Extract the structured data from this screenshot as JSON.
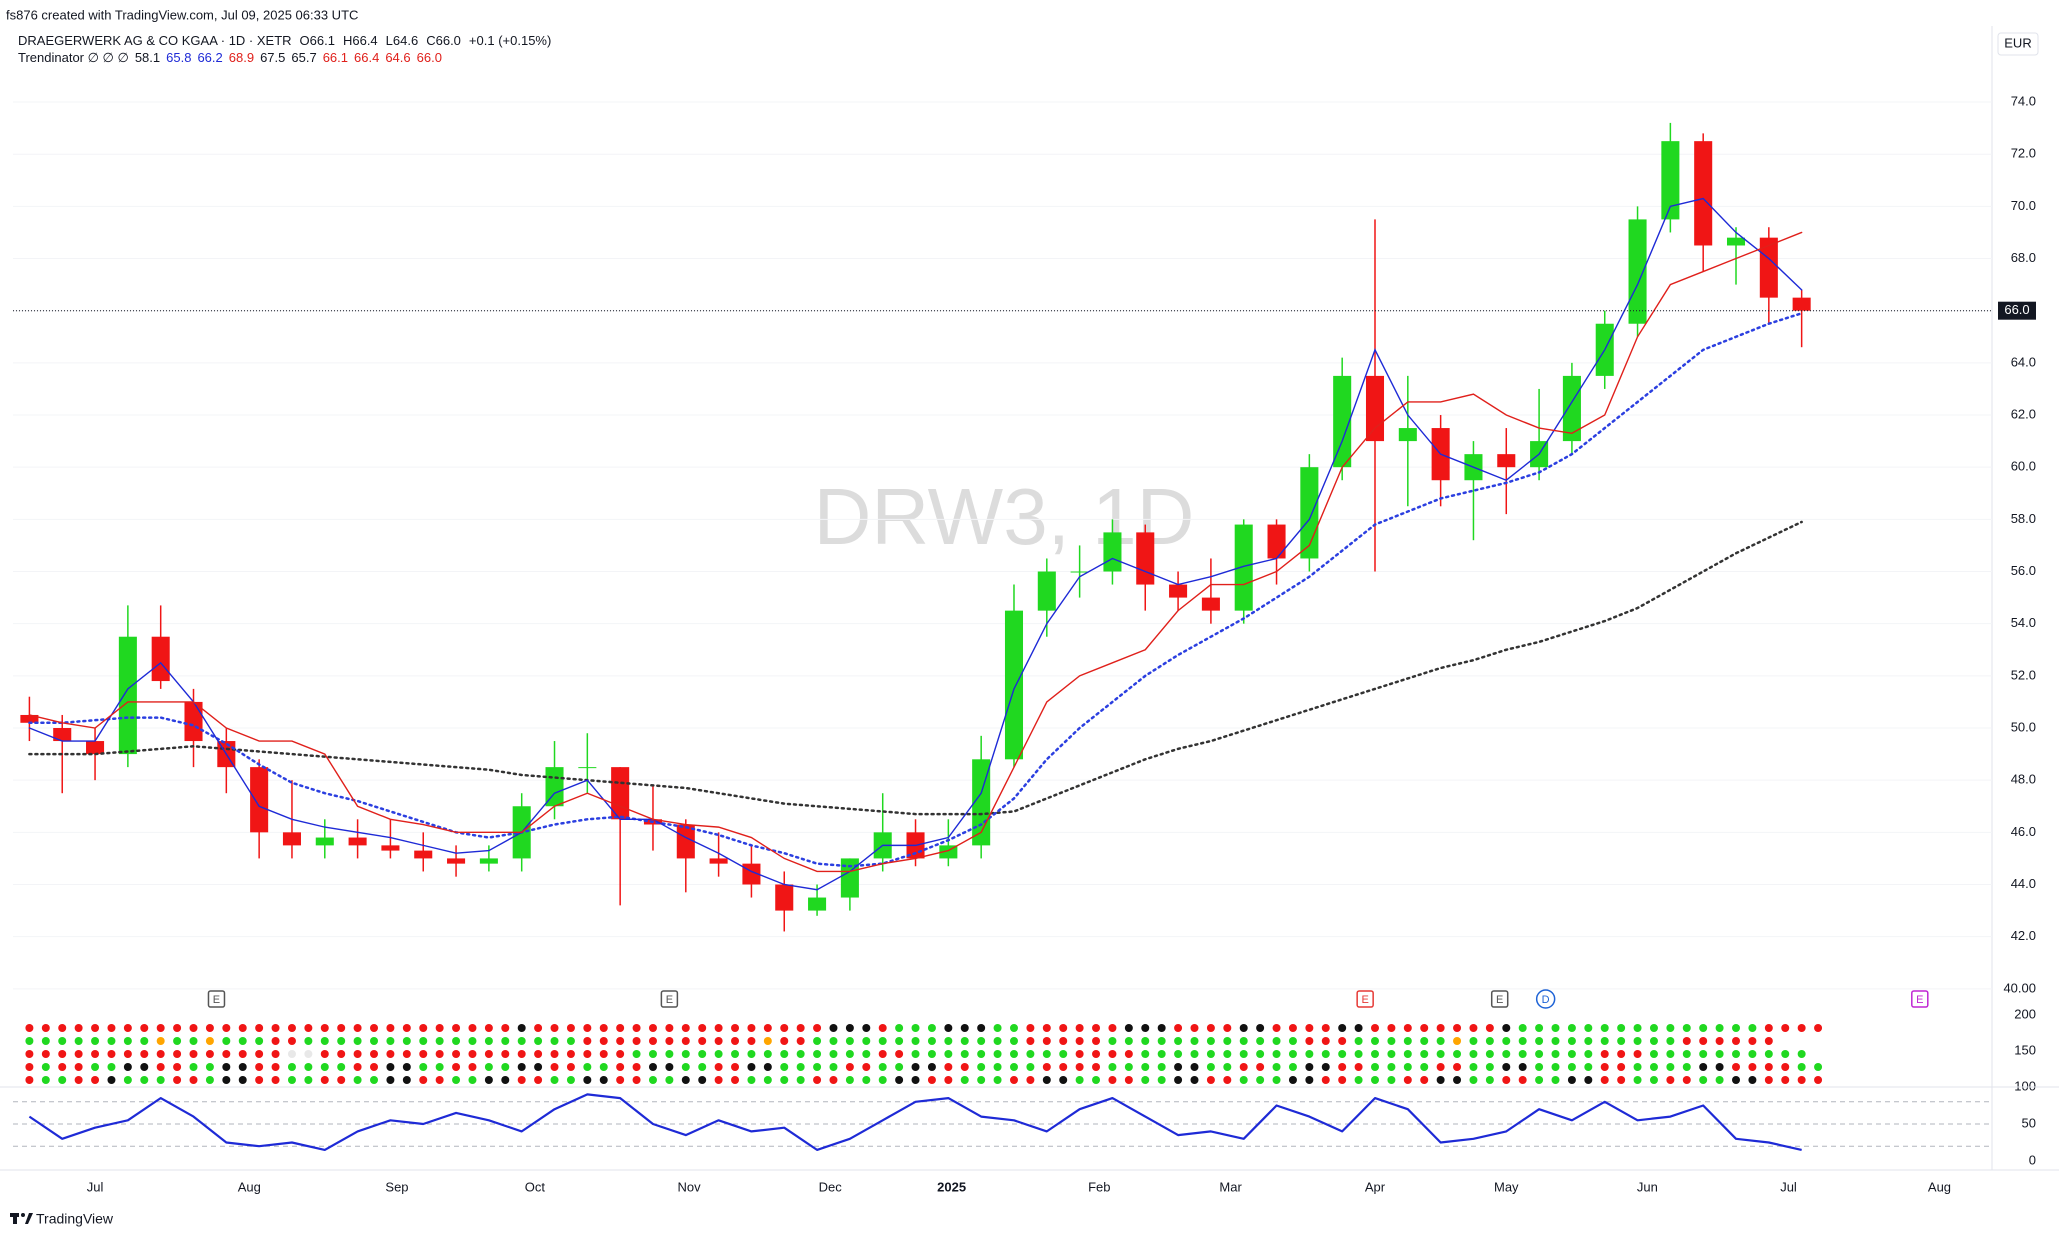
{
  "header": {
    "credit": "fs876 created with TradingView.com, Jul 09, 2025 06:33 UTC",
    "symbol": "DRAEGERWERK AG & CO KGAA · 1D · XETR",
    "ohlc": [
      "O66.1",
      "H66.4",
      "L64.6",
      "C66.0"
    ],
    "change": "+0.1 (+0.15%)",
    "indicator": "Trendinator ∅ ∅ ∅",
    "indicator_values": [
      {
        "text": "58.1",
        "color": "#131722"
      },
      {
        "text": "65.8",
        "color": "#1e2ad6"
      },
      {
        "text": "66.2",
        "color": "#1e2ad6"
      },
      {
        "text": "68.9",
        "color": "#e0201b"
      },
      {
        "text": "67.5",
        "color": "#131722"
      },
      {
        "text": "65.7",
        "color": "#131722"
      },
      {
        "text": "66.1",
        "color": "#e0201b"
      },
      {
        "text": "66.4",
        "color": "#e0201b"
      },
      {
        "text": "64.6",
        "color": "#e0201b"
      },
      {
        "text": "66.0",
        "color": "#e0201b"
      }
    ],
    "currency": "EUR",
    "watermark": "DRW3, 1D"
  },
  "chart_data": [
    {
      "type": "candlestick",
      "open": [
        50.5,
        50,
        49.5,
        49,
        53.5,
        51,
        49.5,
        48.5,
        46,
        45.5,
        45.8,
        45.5,
        45.3,
        45,
        44.8,
        45,
        47,
        48.5,
        48.5,
        46.5,
        46.3,
        45,
        44.8,
        44,
        43,
        43.5,
        45,
        46,
        45,
        45.5,
        48.8,
        54.5,
        56,
        56,
        57.5,
        55.5,
        55,
        54.5,
        57.8,
        56.5,
        60,
        63.5,
        61,
        61.5,
        59.5,
        60.5,
        60,
        61,
        63.5,
        65.5,
        69.5,
        72.5,
        68.5,
        68.8,
        66.5
      ],
      "high": [
        51.2,
        50.5,
        50,
        54.7,
        54.7,
        51.5,
        50,
        48.8,
        48,
        46.5,
        46.5,
        46.5,
        46,
        45.5,
        45.5,
        47.5,
        49.5,
        49.8,
        48.5,
        47.8,
        46.5,
        46,
        45.5,
        44.5,
        44,
        45,
        47.5,
        46.5,
        46.5,
        49.7,
        55.5,
        56.5,
        57,
        58,
        57.8,
        56,
        56.5,
        58,
        58,
        60.5,
        64.2,
        69.5,
        63.5,
        62,
        61,
        61.5,
        63,
        64,
        66,
        70,
        73.2,
        72.8,
        69.2,
        69.2,
        66.8
      ],
      "low": [
        49.5,
        47.5,
        48,
        48.5,
        51.5,
        48.5,
        47.5,
        45,
        45,
        45,
        45,
        45,
        44.5,
        44.3,
        44.5,
        44.5,
        46.5,
        47.5,
        43.2,
        45.3,
        43.7,
        44.3,
        43.5,
        42.2,
        42.8,
        43,
        44.5,
        44.7,
        44.7,
        45,
        48.5,
        53.5,
        55,
        55.5,
        54.5,
        54.5,
        54,
        54,
        55.5,
        56,
        59.5,
        56,
        58.5,
        58.5,
        57.2,
        58.2,
        59.5,
        60.5,
        63,
        65,
        69,
        67.5,
        67,
        65.5,
        64.6
      ],
      "close": [
        50.2,
        49.5,
        49,
        53.5,
        51.8,
        49.5,
        48.5,
        46,
        45.5,
        45.8,
        45.5,
        45.3,
        45,
        44.8,
        45,
        47,
        48.5,
        48.5,
        46.5,
        46.3,
        45,
        44.8,
        44,
        43,
        43.5,
        45,
        46,
        45,
        45.5,
        48.8,
        54.5,
        56,
        56,
        57.5,
        55.5,
        55,
        54.5,
        57.8,
        56.5,
        60,
        63.5,
        61,
        61.5,
        59.5,
        60.5,
        60,
        61,
        63.5,
        65.5,
        69.5,
        72.5,
        68.5,
        68.8,
        66.5,
        66
      ],
      "up_color": "#20d820",
      "down_color": "#f01515",
      "lines": [
        {
          "color": "#333333",
          "dash": "dot",
          "values": [
            49,
            49,
            49,
            49.1,
            49.2,
            49.3,
            49.2,
            49.1,
            49,
            48.9,
            48.8,
            48.7,
            48.6,
            48.5,
            48.4,
            48.2,
            48.1,
            48,
            47.9,
            47.8,
            47.7,
            47.5,
            47.3,
            47.1,
            47,
            46.9,
            46.8,
            46.7,
            46.7,
            46.7,
            46.8,
            47.3,
            47.8,
            48.3,
            48.8,
            49.2,
            49.5,
            49.9,
            50.3,
            50.7,
            51.1,
            51.5,
            51.9,
            52.3,
            52.6,
            53,
            53.3,
            53.7,
            54.1,
            54.6,
            55.3,
            56,
            56.7,
            57.3,
            57.9
          ]
        },
        {
          "color": "#2b3fe0",
          "dash": "dot",
          "values": [
            50.2,
            50.2,
            50.3,
            50.4,
            50.4,
            50.1,
            49.4,
            48.6,
            47.9,
            47.5,
            47.2,
            46.8,
            46.4,
            46,
            45.8,
            46,
            46.3,
            46.5,
            46.6,
            46.4,
            46.2,
            45.9,
            45.5,
            45.2,
            44.8,
            44.7,
            44.8,
            45.2,
            45.7,
            46.3,
            47.3,
            48.8,
            50,
            51,
            52,
            52.8,
            53.5,
            54.2,
            55,
            55.8,
            56.8,
            57.8,
            58.3,
            58.8,
            59.1,
            59.4,
            59.8,
            60.5,
            61.5,
            62.5,
            63.5,
            64.5,
            65,
            65.5,
            65.9
          ]
        },
        {
          "color": "#1e2ad6",
          "dash": "solid",
          "values": [
            50,
            49.5,
            49.5,
            51.5,
            52.5,
            51,
            49,
            47,
            46.5,
            46.2,
            46,
            45.8,
            45.5,
            45.2,
            45.3,
            46,
            47.5,
            48,
            46.5,
            46.5,
            45.8,
            45.2,
            44.5,
            44,
            43.8,
            44.5,
            45.5,
            45.5,
            45.8,
            47.5,
            51.5,
            54,
            55.8,
            56.5,
            56,
            55.5,
            55.8,
            56.2,
            56.5,
            58,
            61,
            64.5,
            62,
            60.5,
            60,
            59.5,
            60.5,
            62.5,
            64.5,
            67,
            70,
            70.3,
            69,
            68,
            66.8
          ]
        },
        {
          "color": "#e0201b",
          "dash": "solid",
          "values": [
            50.5,
            50.2,
            50,
            51,
            51,
            51,
            50,
            49.5,
            49.5,
            49,
            47,
            46.5,
            46.3,
            46,
            46,
            46,
            47,
            47.5,
            47,
            46.5,
            46.3,
            46.2,
            45.8,
            45,
            44.5,
            44.5,
            44.8,
            45,
            45.3,
            46,
            48.5,
            51,
            52,
            52.5,
            53,
            54.5,
            55.5,
            55.5,
            56,
            57,
            60,
            61.5,
            62.5,
            62.5,
            62.8,
            62,
            61.5,
            61.3,
            62,
            65,
            67,
            67.5,
            68,
            68.5,
            69
          ]
        }
      ],
      "xlim": [
        -0.5,
        59.8
      ],
      "xticks": [
        {
          "value": 2.0,
          "label": "Jul"
        },
        {
          "value": 6.7,
          "label": "Aug"
        },
        {
          "value": 11.2,
          "label": "Sep"
        },
        {
          "value": 15.4,
          "label": "Oct"
        },
        {
          "value": 20.1,
          "label": "Nov"
        },
        {
          "value": 24.4,
          "label": "Dec"
        },
        {
          "value": 28.1,
          "label": "2025"
        },
        {
          "value": 32.6,
          "label": "Feb"
        },
        {
          "value": 36.6,
          "label": "Mar"
        },
        {
          "value": 41.0,
          "label": "Apr"
        },
        {
          "value": 45.0,
          "label": "May"
        },
        {
          "value": 49.3,
          "label": "Jun"
        },
        {
          "value": 53.6,
          "label": "Jul"
        },
        {
          "value": 58.2,
          "label": "Aug"
        }
      ],
      "ylim": [
        39.15,
        76.8
      ],
      "yticks": [
        {
          "value": 40,
          "label": "40.00"
        },
        {
          "value": 42,
          "label": "42.0"
        },
        {
          "value": 44,
          "label": "44.0"
        },
        {
          "value": 46,
          "label": "46.0"
        },
        {
          "value": 48,
          "label": "48.0"
        },
        {
          "value": 50,
          "label": "50.0"
        },
        {
          "value": 52,
          "label": "52.0"
        },
        {
          "value": 54,
          "label": "54.0"
        },
        {
          "value": 56,
          "label": "56.0"
        },
        {
          "value": 58,
          "label": "58.0"
        },
        {
          "value": 60,
          "label": "60.0"
        },
        {
          "value": 62,
          "label": "62.0"
        },
        {
          "value": 64,
          "label": "64.0"
        },
        {
          "value": 66,
          "label": "66.0"
        },
        {
          "value": 68,
          "label": "68.0"
        },
        {
          "value": 70,
          "label": "70.0"
        },
        {
          "value": 72,
          "label": "72.0"
        },
        {
          "value": 74,
          "label": "74.0"
        }
      ],
      "grid": true,
      "last_price": {
        "value": 66,
        "label": "66.0"
      },
      "events": [
        {
          "x": 5.7,
          "label": "E",
          "color": "#555555"
        },
        {
          "x": 19.5,
          "label": "E",
          "color": "#555555"
        },
        {
          "x": 40.7,
          "label": "E",
          "color": "#e53935"
        },
        {
          "x": 44.8,
          "label": "E",
          "color": "#555555"
        },
        {
          "x": 46.2,
          "label": "D",
          "color": "#1e63d6"
        },
        {
          "x": 57.6,
          "label": "E",
          "color": "#c026d3"
        }
      ]
    },
    {
      "type": "dot-matrix",
      "rows": [
        "rrrrrrrrrrrrrrrrrrrrrrrrrrrrrrkrrrrrrrrrrrrrrrrrrkkkrgggkkkggrrrrrrkkkrrrrkkrrrrkkrrrrrrrrkgggggggggggggggrrrr",
        "ggggggggoggogggrrgggggggggggggggggrrrrrrrrrrrorrgggggggggggggrrrrrggggggggggggrrrggggggogggggggggggggrrrrrr",
        "rrrrrrrrrrrrrrrrwwrrrrrrrrrrrrrrrrrrrgggggggggggggggrrggggggggggrrrrggggggggggggggggggggggggggggrrrgggggggggg",
        "rgrrggkkrrggkkrrggggrrkkggrrggkkrrggrrkkggrrkkggggrrggkkrrggggrrrrggggkkggrrggkkrrggggrrggkkggggrrggggkkrrrrgg",
        "rggrrkgggrrgkkrrggrrggkkrrggkkrrggkkrrggkkrrggggrrgggkkrrgggrrkkggrrggkkrrgggkkrrgggrrkkggrrggkkrrggrrggkkrrrr"
      ],
      "palette": {
        "r": "#f01515",
        "g": "#20d820",
        "k": "#111111",
        "o": "#ffa500",
        "w": "#e8e8e8"
      },
      "ylim": [
        100,
        200
      ],
      "yticks": [
        100,
        150,
        200
      ]
    },
    {
      "type": "line",
      "values": [
        60,
        30,
        45,
        55,
        85,
        60,
        25,
        20,
        25,
        15,
        40,
        55,
        50,
        65,
        55,
        40,
        70,
        90,
        85,
        50,
        35,
        55,
        40,
        45,
        15,
        30,
        55,
        80,
        85,
        60,
        55,
        40,
        70,
        85,
        60,
        35,
        40,
        30,
        75,
        60,
        40,
        85,
        70,
        25,
        30,
        40,
        70,
        55,
        80,
        55,
        60,
        75,
        30,
        25,
        15
      ],
      "color": "#1e2ad6",
      "ylim": [
        0,
        100
      ],
      "yticks": [
        0,
        50,
        100
      ],
      "levels": [
        80,
        50,
        20
      ]
    }
  ],
  "footer": {
    "brand": "TradingView"
  }
}
